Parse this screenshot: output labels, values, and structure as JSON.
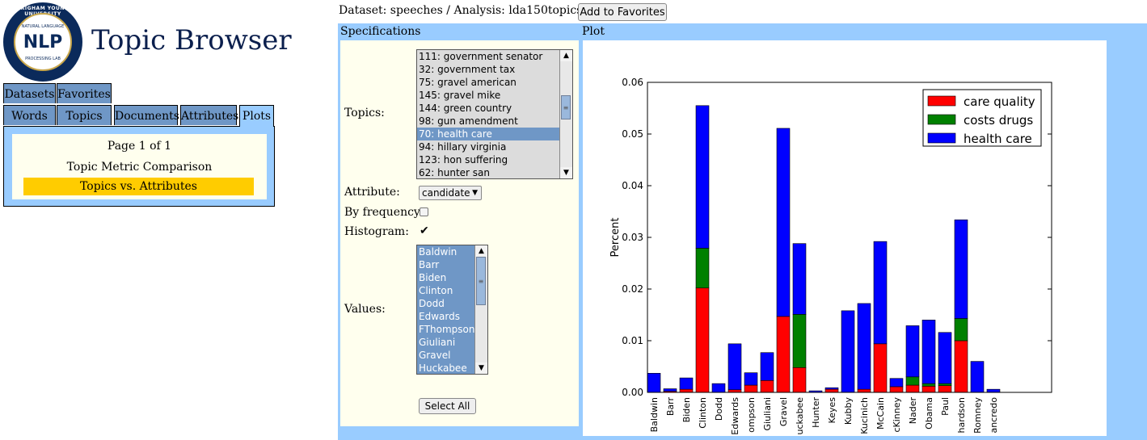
{
  "logo": {
    "ring_text": "BRIGHAM YOUNG UNIVERSITY",
    "upper_text": "NATURAL LANGUAGE",
    "main_text": "NLP",
    "lower_text": "PROCESSING LAB"
  },
  "app_title": "Topic Browser",
  "tabs_row1": [
    "Datasets",
    "Favorites"
  ],
  "tabs_row2": [
    "Words",
    "Topics",
    "Documents",
    "Attributes",
    "Plots"
  ],
  "active_tab": "Plots",
  "plots_nav": {
    "page": "Page 1 of 1",
    "links": [
      "Topic Metric Comparison",
      "Topics vs. Attributes"
    ]
  },
  "breadcrumb": "Dataset: speeches / Analysis: lda150topics / Plot",
  "add_favorites_label": "Add to Favorites",
  "spec": {
    "title": "Specifications",
    "topics_label": "Topics:",
    "topics": [
      "111: government senator",
      "32: government tax",
      "75: gravel american",
      "145: gravel mike",
      "144: green country",
      "98: gun amendment",
      "70: health care",
      "94: hillary virginia",
      "123: hon suffering",
      "62: hunter san"
    ],
    "selected_topic": "70: health care",
    "attribute_label": "Attribute:",
    "attribute_value": "candidate",
    "by_frequency_label": "By frequency:",
    "by_frequency": false,
    "histogram_label": "Histogram:",
    "histogram": true,
    "values_label": "Values:",
    "values": [
      "Baldwin",
      "Barr",
      "Biden",
      "Clinton",
      "Dodd",
      "Edwards",
      "FThompson",
      "Giuliani",
      "Gravel",
      "Huckabee"
    ],
    "select_all_label": "Select All"
  },
  "plot_title": "Plot",
  "chart_data": {
    "type": "bar",
    "stacked": true,
    "ylabel": "Percent",
    "ylim": [
      0,
      0.06
    ],
    "yticks": [
      "0.00",
      "0.01",
      "0.02",
      "0.03",
      "0.04",
      "0.05",
      "0.06"
    ],
    "legend_position": "top-right",
    "categories": [
      "Baldwin",
      "Barr",
      "Biden",
      "Clinton",
      "Dodd",
      "Edwards",
      "FThompson",
      "Giuliani",
      "Gravel",
      "Huckabee",
      "Hunter",
      "Keyes",
      "Kubby",
      "Kucinich",
      "McCain",
      "McKinney",
      "Nader",
      "Obama",
      "Paul",
      "Richardson",
      "Romney",
      "Tancredo"
    ],
    "tick_labels": [
      "Baldwin",
      "Barr",
      "Biden",
      "Clinton",
      "Dodd",
      "Edwards",
      "ompson",
      "Giuliani",
      "Gravel",
      "uckabee",
      "Hunter",
      "Keyes",
      "Kubby",
      "Kucinich",
      "McCain",
      "cKinney",
      "Nader",
      "Obama",
      "Paul",
      "hardson",
      "Romney",
      "ancredo"
    ],
    "series": [
      {
        "name": "care quality",
        "color": "#ff0000",
        "values": [
          0.0,
          0.0002,
          0.0006,
          0.0202,
          0.0,
          0.0005,
          0.0014,
          0.0023,
          0.0147,
          0.0048,
          0.0,
          0.0006,
          0.0,
          0.0006,
          0.0094,
          0.0011,
          0.0014,
          0.0012,
          0.0013,
          0.01,
          0.0,
          0.0
        ]
      },
      {
        "name": "costs drugs",
        "color": "#008000",
        "values": [
          0.0,
          0.0,
          0.0,
          0.0077,
          0.0,
          0.0,
          0.0,
          0.0,
          0.0,
          0.0103,
          0.0,
          0.0,
          0.0,
          0.0,
          0.0,
          0.0,
          0.0016,
          0.0005,
          0.0004,
          0.0043,
          0.0,
          0.0
        ]
      },
      {
        "name": "health care",
        "color": "#0000ff",
        "values": [
          0.0037,
          0.0005,
          0.0022,
          0.0276,
          0.0017,
          0.0089,
          0.0024,
          0.0054,
          0.0364,
          0.0137,
          0.0003,
          0.0003,
          0.0158,
          0.0166,
          0.0198,
          0.0016,
          0.0099,
          0.0123,
          0.0099,
          0.0191,
          0.006,
          0.0006
        ]
      }
    ]
  }
}
